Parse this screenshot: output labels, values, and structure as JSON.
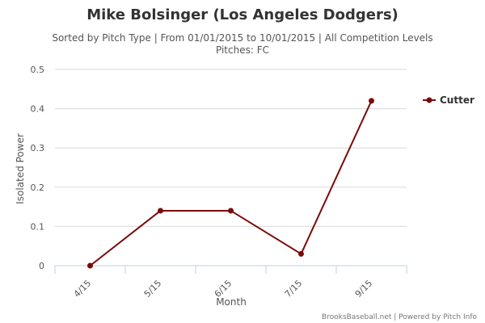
{
  "chart_data": {
    "type": "line",
    "title": "Mike Bolsinger (Los Angeles Dodgers)",
    "subtitle_line1": "Sorted by Pitch Type | From 01/01/2015 to 10/01/2015 | All Competition Levels",
    "subtitle_line2": "Pitches: FC",
    "xlabel": "Month",
    "ylabel": "Isolated Power",
    "categories": [
      "4/15",
      "5/15",
      "6/15",
      "7/15",
      "9/15"
    ],
    "ylim": [
      0,
      0.5
    ],
    "yticks": [
      "0",
      "0.1",
      "0.2",
      "0.3",
      "0.4",
      "0.5"
    ],
    "grid": true,
    "legend_position": "right",
    "series": [
      {
        "name": "Cutter",
        "values": [
          0.0,
          0.14,
          0.14,
          0.03,
          0.42
        ],
        "color": "#7a0a0a"
      }
    ],
    "credits": "BrooksBaseball.net | Powered by Pitch Info"
  },
  "colors": {
    "grid": "#d8d8d8",
    "axis": "#c0d0e0"
  }
}
